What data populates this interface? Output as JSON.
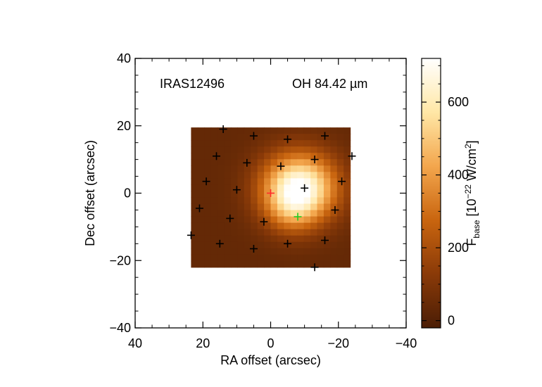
{
  "chart_data": {
    "type": "heatmap",
    "annotations": {
      "left": "IRAS12496",
      "right": "OH 84.42 µm"
    },
    "xlabel": "RA offset (arcsec)",
    "ylabel": "Dec offset (arcsec)",
    "xlim": [
      40,
      -40
    ],
    "ylim": [
      -40,
      40
    ],
    "x_ticks": [
      40,
      20,
      0,
      -20,
      -40
    ],
    "y_ticks": [
      40,
      20,
      0,
      -20,
      -40
    ],
    "x_tick_labels": [
      "40",
      "20",
      "0",
      "−20",
      "−40"
    ],
    "y_tick_labels": [
      "40",
      "20",
      "0",
      "−20",
      "−40"
    ],
    "map_extent": {
      "ra": [
        23.5,
        -23.5
      ],
      "dec": [
        -22,
        19.5
      ]
    },
    "peak": {
      "ra": -8.5,
      "dec": 1.5,
      "value": 720
    },
    "colorbar": {
      "title_main": "F",
      "title_sub": "base",
      "title_rest_pre": " [10",
      "title_sup1": "−22",
      "title_rest_mid": " W/cm",
      "title_sup2": "2",
      "title_rest_post": "]",
      "range": [
        -20,
        720
      ],
      "ticks": [
        0,
        200,
        400,
        600
      ],
      "tick_labels": [
        "0",
        "200",
        "400",
        "600"
      ],
      "colors": [
        "#4a1d05",
        "#8a3a08",
        "#c9650f",
        "#f3a64d",
        "#ffe7a6",
        "#ffffff"
      ]
    },
    "markers": {
      "black": [
        [
          14,
          19
        ],
        [
          5,
          17
        ],
        [
          -5,
          16
        ],
        [
          -16,
          17
        ],
        [
          16,
          11
        ],
        [
          7,
          9
        ],
        [
          -3,
          8
        ],
        [
          -13,
          10
        ],
        [
          -24,
          11
        ],
        [
          19,
          3.5
        ],
        [
          10,
          1
        ],
        [
          -10,
          1.5
        ],
        [
          -21,
          3.5
        ],
        [
          21,
          -4.5
        ],
        [
          12,
          -7.5
        ],
        [
          2,
          -8.5
        ],
        [
          -19,
          -5
        ],
        [
          23.5,
          -12.5
        ],
        [
          15,
          -15
        ],
        [
          5,
          -16.5
        ],
        [
          -5,
          -15
        ],
        [
          -16,
          -14
        ],
        [
          -13,
          -22
        ]
      ],
      "red": [
        [
          0,
          0
        ]
      ],
      "green": [
        [
          -8,
          -7
        ]
      ],
      "colors": {
        "black": "#000000",
        "red": "#ff2a2a",
        "green": "#22cc22"
      }
    }
  }
}
